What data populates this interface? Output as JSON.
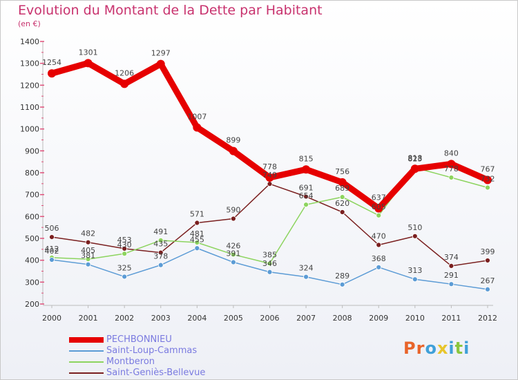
{
  "title": "Evolution du Montant de la Dette par Habitant",
  "subtitle": "(en €)",
  "logo": {
    "letters": [
      "P",
      "r",
      "o",
      "x",
      "i",
      "t",
      "i"
    ],
    "colors": [
      "#e8642a",
      "#e8642a",
      "#3fa0d8",
      "#e8c52a",
      "#3fa0d8",
      "#8bc63e",
      "#3fa0d8"
    ]
  },
  "chart_data": {
    "type": "line",
    "categories": [
      "2000",
      "2001",
      "2002",
      "2003",
      "2004",
      "2005",
      "2006",
      "2007",
      "2008",
      "2009",
      "2010",
      "2011",
      "2012"
    ],
    "ylim": [
      200,
      1400
    ],
    "yticks": [
      200,
      300,
      400,
      500,
      600,
      700,
      800,
      900,
      1000,
      1100,
      1200,
      1300,
      1400
    ],
    "grid": false,
    "legend_position": "bottom-left",
    "series": [
      {
        "name": "PECHBONNIEU",
        "color": "#e60000",
        "values": [
          1254,
          1301,
          1206,
          1297,
          1007,
          899,
          778,
          815,
          756,
          637,
          818,
          840,
          767
        ]
      },
      {
        "name": "Saint-Loup-Cammas",
        "color": "#5b9bd5",
        "values": [
          402,
          381,
          325,
          378,
          455,
          391,
          346,
          324,
          289,
          368,
          313,
          291,
          267
        ]
      },
      {
        "name": "Montberon",
        "color": "#8cd45e",
        "values": [
          412,
          405,
          430,
          491,
          481,
          426,
          385,
          654,
          689,
          605,
          823,
          778,
          732
        ]
      },
      {
        "name": "Saint-Geniès-Bellevue",
        "color": "#7a1f1f",
        "values": [
          506,
          482,
          453,
          435,
          571,
          590,
          749,
          691,
          620,
          470,
          510,
          374,
          399
        ]
      }
    ]
  }
}
